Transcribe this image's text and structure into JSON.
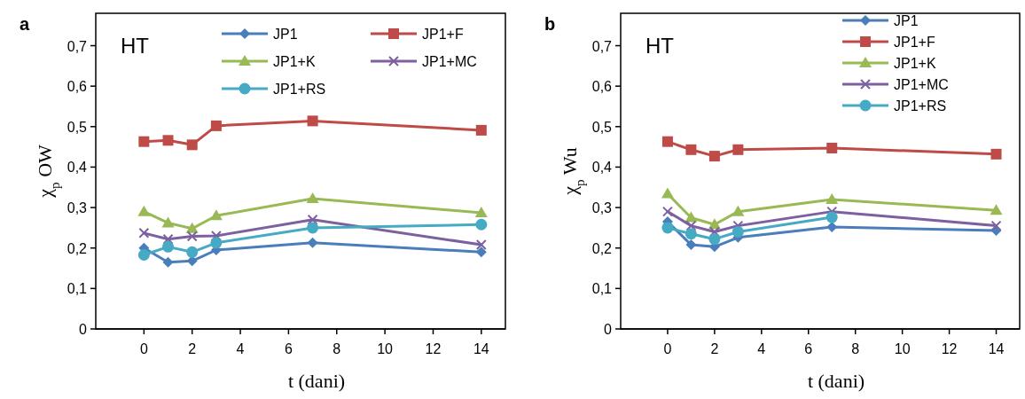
{
  "chart_data": [
    {
      "type": "line",
      "title": "a",
      "annotations": [
        "HT"
      ],
      "xlabel": "t (dani)",
      "ylabel": "χ$_{p}$ OW",
      "xlim": [
        -2,
        15
      ],
      "xticks": [
        0,
        2,
        4,
        6,
        8,
        10,
        12,
        14
      ],
      "ylim": [
        0,
        0.78
      ],
      "yticks": [
        0,
        {
          "value": 0.1,
          "label": "0,1"
        },
        {
          "value": 0.2,
          "label": "0,2"
        },
        {
          "value": 0.3,
          "label": "0,3"
        },
        {
          "value": 0.4,
          "label": "0,4"
        },
        {
          "value": 0.5,
          "label": "0,5"
        },
        {
          "value": 0.6,
          "label": "0,6"
        },
        {
          "value": 0.7,
          "label": "0,7"
        }
      ],
      "grid": false,
      "legend": "top",
      "x": [
        0,
        1,
        2,
        3,
        7,
        14
      ],
      "series": [
        {
          "name": "JP1",
          "color": "#4a7ebb",
          "marker": "diamond",
          "values": [
            0.2,
            0.165,
            0.168,
            0.195,
            0.213,
            0.19
          ]
        },
        {
          "name": "JP1+F",
          "color": "#be4b48",
          "marker": "square",
          "values": [
            0.463,
            0.466,
            0.455,
            0.502,
            0.514,
            0.491
          ]
        },
        {
          "name": "JP1+K",
          "color": "#98b954",
          "marker": "triangle",
          "values": [
            0.29,
            0.262,
            0.248,
            0.28,
            0.322,
            0.287
          ]
        },
        {
          "name": "JP1+MC",
          "color": "#7d60a0",
          "marker": "cross",
          "values": [
            0.237,
            0.222,
            0.229,
            0.23,
            0.27,
            0.208
          ]
        },
        {
          "name": "JP1+RS",
          "color": "#46aac5",
          "marker": "circle",
          "values": [
            0.183,
            0.203,
            0.19,
            0.213,
            0.25,
            0.258
          ]
        }
      ]
    },
    {
      "type": "line",
      "title": "b",
      "annotations": [
        "HT"
      ],
      "xlabel": "t (dani)",
      "ylabel": "χ$_{p}$ Wu",
      "xlim": [
        -2,
        15
      ],
      "xticks": [
        0,
        2,
        4,
        6,
        8,
        10,
        12,
        14
      ],
      "ylim": [
        0,
        0.78
      ],
      "yticks": [
        0,
        {
          "value": 0.1,
          "label": "0,1"
        },
        {
          "value": 0.2,
          "label": "0,2"
        },
        {
          "value": 0.3,
          "label": "0,3"
        },
        {
          "value": 0.4,
          "label": "0,4"
        },
        {
          "value": 0.5,
          "label": "0,5"
        },
        {
          "value": 0.6,
          "label": "0,6"
        },
        {
          "value": 0.7,
          "label": "0,7"
        }
      ],
      "grid": false,
      "legend": "top right",
      "x": [
        0,
        1,
        2,
        3,
        7,
        14
      ],
      "series": [
        {
          "name": "JP1",
          "color": "#4a7ebb",
          "marker": "diamond",
          "values": [
            0.265,
            0.208,
            0.203,
            0.226,
            0.252,
            0.243
          ]
        },
        {
          "name": "JP1+F",
          "color": "#be4b48",
          "marker": "square",
          "values": [
            0.463,
            0.443,
            0.427,
            0.443,
            0.447,
            0.432
          ]
        },
        {
          "name": "JP1+K",
          "color": "#98b954",
          "marker": "triangle",
          "values": [
            0.334,
            0.275,
            0.258,
            0.29,
            0.32,
            0.293
          ]
        },
        {
          "name": "JP1+MC",
          "color": "#7d60a0",
          "marker": "cross",
          "values": [
            0.29,
            0.255,
            0.24,
            0.255,
            0.29,
            0.255
          ]
        },
        {
          "name": "JP1+RS",
          "color": "#46aac5",
          "marker": "circle",
          "values": [
            0.25,
            0.235,
            0.222,
            0.24,
            0.276,
            null
          ]
        }
      ]
    }
  ]
}
